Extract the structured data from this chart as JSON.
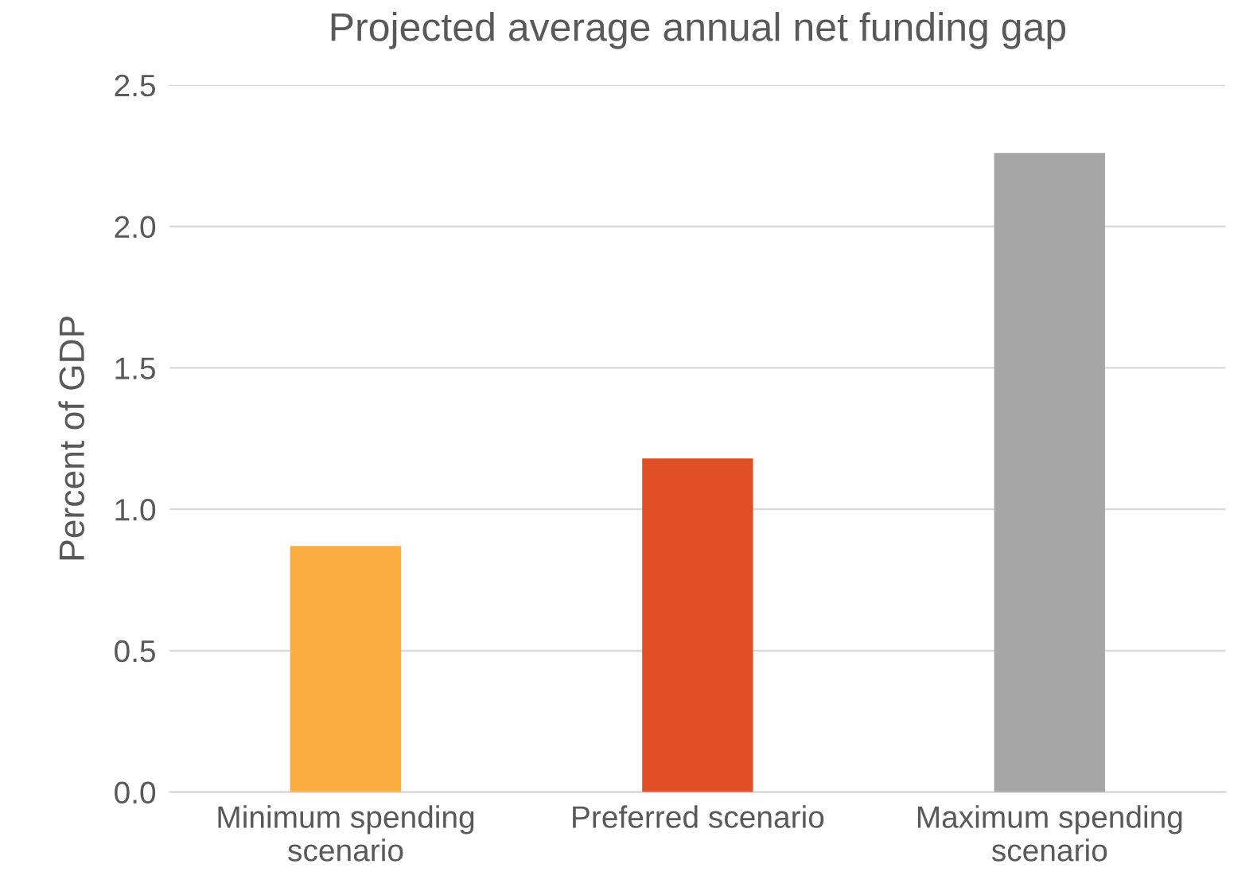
{
  "chart_data": {
    "type": "bar",
    "title": "Projected average annual net funding gap",
    "ylabel": "Percent of GDP",
    "categories": [
      "Minimum spending\nscenario",
      "Preferred scenario",
      "Maximum spending\nscenario"
    ],
    "values": [
      0.87,
      1.18,
      2.26
    ],
    "colors": [
      "#fbae3f",
      "#e04f25",
      "#a6a6a6"
    ],
    "ylim": [
      0,
      2.5
    ],
    "yticks": [
      {
        "value": 0,
        "label": "0.0"
      },
      {
        "value": 0.5,
        "label": "0.5"
      },
      {
        "value": 1,
        "label": "1.0"
      },
      {
        "value": 1.5,
        "label": "1.5"
      },
      {
        "value": 2,
        "label": "2.0"
      },
      {
        "value": 2.5,
        "label": "2.5"
      }
    ],
    "grid": "y",
    "legend": false
  }
}
